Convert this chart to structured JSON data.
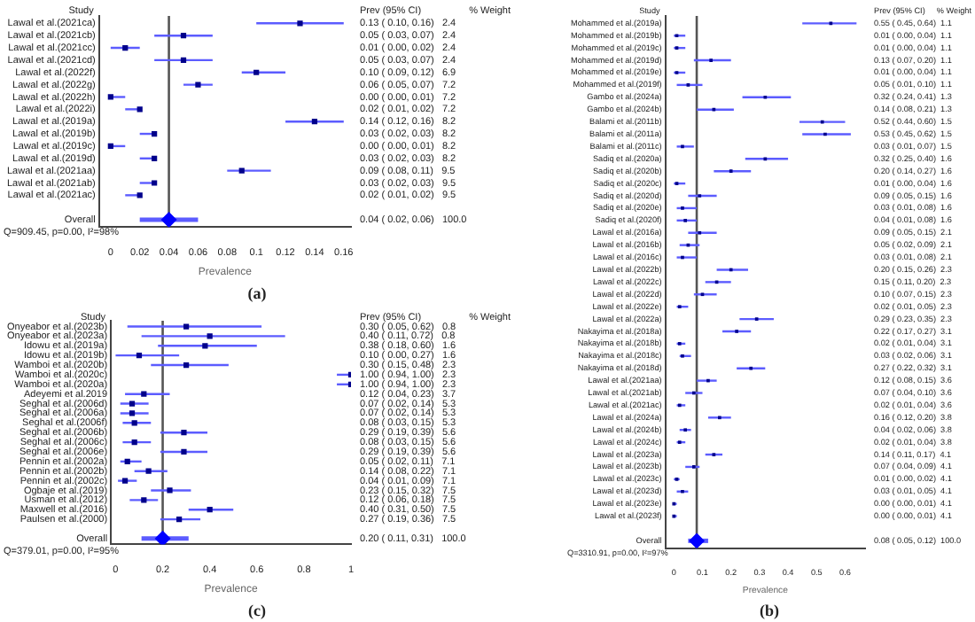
{
  "chart_data": [
    {
      "type": "scatter",
      "orientation": "horizontal",
      "xlabel": "Prevalence",
      "xlim": [
        -0.008,
        0.165
      ],
      "xticks": [
        0,
        0.02,
        0.04,
        0.06,
        0.08,
        0.1,
        0.12,
        0.14,
        0.16
      ],
      "grid": false,
      "legend": false,
      "categories": [
        "Lawal et al.(2021ca)",
        "Lawal et al.(2021cb)",
        "Lawal et al.(2021cc)",
        "Lawal et al.(2021cd)",
        "Lawal et al.(2022f)",
        "Lawal et al.(2022g)",
        "Lawal et al.(2022h)",
        "Lawal et al.(2022i)",
        "Lawal et al.(2019a)",
        "Lawal et al.(2019b)",
        "Lawal et al.(2019c)",
        "Lawal et al.(2019d)",
        "Lawal et al.(2021aa)",
        "Lawal et al.(2021ab)",
        "Lawal et al.(2021ac)",
        null,
        "Overall"
      ],
      "series": [
        {
          "color": "#00008b",
          "marker": "square",
          "values": [
            0.13,
            0.05,
            0.01,
            0.05,
            0.1,
            0.06,
            0.0,
            0.02,
            0.14,
            0.03,
            0.0,
            0.03,
            0.09,
            0.03,
            0.02,
            null,
            null
          ],
          "errors": [
            [
              0.1,
              0.16
            ],
            [
              0.03,
              0.07
            ],
            [
              0.0,
              0.02
            ],
            [
              0.03,
              0.07
            ],
            [
              0.09,
              0.12
            ],
            [
              0.05,
              0.07
            ],
            [
              0.0,
              0.01
            ],
            [
              0.01,
              0.02
            ],
            [
              0.12,
              0.16
            ],
            [
              0.02,
              0.03
            ],
            [
              0.0,
              0.01
            ],
            [
              0.02,
              0.03
            ],
            [
              0.08,
              0.11
            ],
            [
              0.02,
              0.03
            ],
            [
              0.01,
              0.02
            ],
            null,
            null
          ],
          "value_labels": [
            "0.13 ( 0.10, 0.16)   2.4",
            "0.05 ( 0.03, 0.07)   2.4",
            "0.01 ( 0.00, 0.02)   2.4",
            "0.05 ( 0.03, 0.07)   2.4",
            "0.10 ( 0.09, 0.12)   6.9",
            "0.06 ( 0.05, 0.07)   7.2",
            "0.00 ( 0.00, 0.01)   7.2",
            "0.02 ( 0.01, 0.02)   7.2",
            "0.14 ( 0.12, 0.16)   8.2",
            "0.03 ( 0.02, 0.03)   8.2",
            "0.00 ( 0.00, 0.01)   8.2",
            "0.03 ( 0.02, 0.03)   8.2",
            "0.09 ( 0.08, 0.11)   9.5",
            "0.03 ( 0.02, 0.03)   9.5",
            "0.02 ( 0.01, 0.02)   9.5",
            null,
            null
          ]
        },
        {
          "color": "#0000ff",
          "marker": "diamond",
          "values": [
            null,
            null,
            null,
            null,
            null,
            null,
            null,
            null,
            null,
            null,
            null,
            null,
            null,
            null,
            null,
            null,
            0.04
          ],
          "errors": [
            null,
            null,
            null,
            null,
            null,
            null,
            null,
            null,
            null,
            null,
            null,
            null,
            null,
            null,
            null,
            null,
            [
              0.02,
              0.06
            ]
          ],
          "value_labels": [
            null,
            null,
            null,
            null,
            null,
            null,
            null,
            null,
            null,
            null,
            null,
            null,
            null,
            null,
            null,
            null,
            null
          ]
        }
      ],
      "ref_lines": [
        {
          "axis": "x",
          "value": 0.04,
          "color": "#555555"
        }
      ],
      "annotations": [
        "Study",
        "Prev (95% CI)",
        "% Weight",
        "Q=909.45, p=0.00, I²=98%",
        "(a)",
        "0.04 ( 0.02, 0.06)   100.0"
      ]
    },
    {
      "type": "scatter",
      "orientation": "horizontal",
      "xlabel": "Prevalence",
      "xlim": [
        -0.03,
        0.67
      ],
      "xticks": [
        0,
        0.1,
        0.2,
        0.3,
        0.4,
        0.5,
        0.6
      ],
      "grid": false,
      "legend": false,
      "categories": [
        "Mohammed et al.(2019a)",
        "Mohammed et al.(2019b)",
        "Mohammed et al.(2019c)",
        "Mohammed et al.(2019d)",
        "Mohammed et al.(2019e)",
        "Mohammed et al.(2019f)",
        "Gambo et al.(2024a)",
        "Gambo et al.(2024b)",
        "Balami et al.(2011b)",
        "Balami et al.(2011a)",
        "Balami et al.(2011c)",
        "Sadiq et al.(2020a)",
        "Sadiq et al.(2020b)",
        "Sadiq et al.(2020c)",
        "Sadiq et al.(2020d)",
        "Sadiq et al.(2020e)",
        "Sadiq et al.(2020f)",
        "Lawal et al.(2016a)",
        "Lawal et al.(2016b)",
        "Lawal et al.(2016c)",
        "Lawal et al.(2022b)",
        "Lawal et al.(2022c)",
        "Lawal et al.(2022d)",
        "Lawal et al.(2022e)",
        "Lawal et al.(2022a)",
        "Nakayima et al.(2018a)",
        "Nakayima et al.(2018b)",
        "Nakayima et al.(2018c)",
        "Nakayima et al.(2018d)",
        "Lawal et al.(2021aa)",
        "Lawal et al.(2021ab)",
        "Lawal et al.(2021ac)",
        "Lawal et al.(2024a)",
        "Lawal et al.(2024b)",
        "Lawal et al.(2024c)",
        "Lawal et al.(2023a)",
        "Lawal et al.(2023b)",
        "Lawal et al.(2023c)",
        "Lawal et al.(2023d)",
        "Lawal et al.(2023e)",
        "Lawal et al.(2023f)",
        null,
        "Overall"
      ],
      "series": [
        {
          "color": "#00008b",
          "marker": "square",
          "values": [
            0.55,
            0.01,
            0.01,
            0.13,
            0.01,
            0.05,
            0.32,
            0.14,
            0.52,
            0.53,
            0.03,
            0.32,
            0.2,
            0.01,
            0.09,
            0.03,
            0.04,
            0.09,
            0.05,
            0.03,
            0.2,
            0.15,
            0.1,
            0.02,
            0.29,
            0.22,
            0.02,
            0.03,
            0.27,
            0.12,
            0.07,
            0.02,
            0.16,
            0.04,
            0.02,
            0.14,
            0.07,
            0.01,
            0.03,
            0.0,
            0.0,
            null,
            null
          ],
          "errors": [
            [
              0.45,
              0.64
            ],
            [
              0.0,
              0.04
            ],
            [
              0.0,
              0.04
            ],
            [
              0.07,
              0.2
            ],
            [
              0.0,
              0.04
            ],
            [
              0.01,
              0.1
            ],
            [
              0.24,
              0.41
            ],
            [
              0.08,
              0.21
            ],
            [
              0.44,
              0.6
            ],
            [
              0.45,
              0.62
            ],
            [
              0.01,
              0.07
            ],
            [
              0.25,
              0.4
            ],
            [
              0.14,
              0.27
            ],
            [
              0.0,
              0.04
            ],
            [
              0.05,
              0.15
            ],
            [
              0.01,
              0.08
            ],
            [
              0.01,
              0.08
            ],
            [
              0.05,
              0.15
            ],
            [
              0.02,
              0.09
            ],
            [
              0.01,
              0.08
            ],
            [
              0.15,
              0.26
            ],
            [
              0.11,
              0.2
            ],
            [
              0.07,
              0.15
            ],
            [
              0.01,
              0.05
            ],
            [
              0.23,
              0.35
            ],
            [
              0.17,
              0.27
            ],
            [
              0.01,
              0.04
            ],
            [
              0.02,
              0.06
            ],
            [
              0.22,
              0.32
            ],
            [
              0.08,
              0.15
            ],
            [
              0.04,
              0.1
            ],
            [
              0.01,
              0.04
            ],
            [
              0.12,
              0.2
            ],
            [
              0.02,
              0.06
            ],
            [
              0.01,
              0.04
            ],
            [
              0.11,
              0.17
            ],
            [
              0.04,
              0.09
            ],
            [
              0.0,
              0.02
            ],
            [
              0.01,
              0.05
            ],
            [
              0.0,
              0.01
            ],
            [
              0.0,
              0.01
            ],
            null,
            null
          ],
          "value_labels": [
            "0.55 ( 0.45, 0.64)  1.1",
            "0.01 ( 0.00, 0.04)  1.1",
            "0.01 ( 0.00, 0.04)  1.1",
            "0.13 ( 0.07, 0.20)  1.1",
            "0.01 ( 0.00, 0.04)  1.1",
            "0.05 ( 0.01, 0.10)  1.1",
            "0.32 ( 0.24, 0.41)  1.3",
            "0.14 ( 0.08, 0.21)  1.3",
            "0.52 ( 0.44, 0.60)  1.5",
            "0.53 ( 0.45, 0.62)  1.5",
            "0.03 ( 0.01, 0.07)  1.5",
            "0.32 ( 0.25, 0.40)  1.6",
            "0.20 ( 0.14, 0.27)  1.6",
            "0.01 ( 0.00, 0.04)  1.6",
            "0.09 ( 0.05, 0.15)  1.6",
            "0.03 ( 0.01, 0.08)  1.6",
            "0.04 ( 0.01, 0.08)  1.6",
            "0.09 ( 0.05, 0.15)  2.1",
            "0.05 ( 0.02, 0.09)  2.1",
            "0.03 ( 0.01, 0.08)  2.1",
            "0.20 ( 0.15, 0.26)  2.3",
            "0.15 ( 0.11, 0.20)  2.3",
            "0.10 ( 0.07, 0.15)  2.3",
            "0.02 ( 0.01, 0.05)  2.3",
            "0.29 ( 0.23, 0.35)  2.3",
            "0.22 ( 0.17, 0.27)  3.1",
            "0.02 ( 0.01, 0.04)  3.1",
            "0.03 ( 0.02, 0.06)  3.1",
            "0.27 ( 0.22, 0.32)  3.1",
            "0.12 ( 0.08, 0.15)  3.6",
            "0.07 ( 0.04, 0.10)  3.6",
            "0.02 ( 0.01, 0.04)  3.6",
            "0.16 ( 0.12, 0.20)  3.8",
            "0.04 ( 0.02, 0.06)  3.8",
            "0.02 ( 0.01, 0.04)  3.8",
            "0.14 ( 0.11, 0.17)  4.1",
            "0.07 ( 0.04, 0.09)  4.1",
            "0.01 ( 0.00, 0.02)  4.1",
            "0.03 ( 0.01, 0.05)  4.1",
            "0.00 ( 0.00, 0.01)  4.1",
            "0.00 ( 0.00, 0.01)  4.1",
            null,
            null
          ]
        },
        {
          "color": "#0000ff",
          "marker": "diamond",
          "values": [
            null,
            null,
            null,
            null,
            null,
            null,
            null,
            null,
            null,
            null,
            null,
            null,
            null,
            null,
            null,
            null,
            null,
            null,
            null,
            null,
            null,
            null,
            null,
            null,
            null,
            null,
            null,
            null,
            null,
            null,
            null,
            null,
            null,
            null,
            null,
            null,
            null,
            null,
            null,
            null,
            null,
            null,
            0.08
          ],
          "errors": [
            null,
            null,
            null,
            null,
            null,
            null,
            null,
            null,
            null,
            null,
            null,
            null,
            null,
            null,
            null,
            null,
            null,
            null,
            null,
            null,
            null,
            null,
            null,
            null,
            null,
            null,
            null,
            null,
            null,
            null,
            null,
            null,
            null,
            null,
            null,
            null,
            null,
            null,
            null,
            null,
            null,
            null,
            [
              0.05,
              0.12
            ]
          ],
          "value_labels": [
            null,
            null,
            null,
            null,
            null,
            null,
            null,
            null,
            null,
            null,
            null,
            null,
            null,
            null,
            null,
            null,
            null,
            null,
            null,
            null,
            null,
            null,
            null,
            null,
            null,
            null,
            null,
            null,
            null,
            null,
            null,
            null,
            null,
            null,
            null,
            null,
            null,
            null,
            null,
            null,
            null,
            null,
            null
          ]
        }
      ],
      "ref_lines": [
        {
          "axis": "x",
          "value": 0.08,
          "color": "#555555"
        }
      ],
      "annotations": [
        "Study",
        "Prev (95% CI)",
        "% Weight",
        "Q=3310.91, p=0.00, I²=97%",
        "(b)",
        "0.08 ( 0.05, 0.12)  100.0"
      ]
    },
    {
      "type": "scatter",
      "orientation": "horizontal",
      "xlabel": "Prevalence",
      "xlim": [
        -0.02,
        1.0
      ],
      "xticks": [
        0,
        0.2,
        0.4,
        0.6,
        0.8,
        1
      ],
      "grid": false,
      "legend": false,
      "categories": [
        "Onyeabor et al.(2023b)",
        "Onyeabor et al.(2023a)",
        "Idowu et al.(2019a)",
        "Idowu et al.(2019b)",
        "Wamboi et al.(2020b)",
        "Wamboi et al.(2020c)",
        "Wamboi et al.(2020a)",
        "Adeyemi et al.2019",
        "Seghal et al.(2006d)",
        "Seghal et al.(2006a)",
        "Seghal et al.(2006f)",
        "Seghal et al.(2006b)",
        "Seghal et al.(2006c)",
        "Seghal et al.(2006e)",
        "Pennin et al.(2002a)",
        "Pennin et al.(2002b)",
        "Pennin et al.(2002c)",
        "Ogbaje et al.(2019)",
        "Usman et al.(2012)",
        "Maxwell et al.(2016)",
        "Paulsen et al.(2000)",
        null,
        "Overall"
      ],
      "series": [
        {
          "color": "#00008b",
          "marker": "square",
          "values": [
            0.3,
            0.4,
            0.38,
            0.1,
            0.3,
            1.0,
            1.0,
            0.12,
            0.07,
            0.07,
            0.08,
            0.29,
            0.08,
            0.29,
            0.05,
            0.14,
            0.04,
            0.23,
            0.12,
            0.4,
            0.27,
            null,
            null
          ],
          "errors": [
            [
              0.05,
              0.62
            ],
            [
              0.11,
              0.72
            ],
            [
              0.18,
              0.6
            ],
            [
              0.0,
              0.27
            ],
            [
              0.15,
              0.48
            ],
            [
              0.94,
              1.0
            ],
            [
              0.94,
              1.0
            ],
            [
              0.04,
              0.23
            ],
            [
              0.02,
              0.14
            ],
            [
              0.02,
              0.14
            ],
            [
              0.03,
              0.15
            ],
            [
              0.19,
              0.39
            ],
            [
              0.03,
              0.15
            ],
            [
              0.19,
              0.39
            ],
            [
              0.02,
              0.11
            ],
            [
              0.08,
              0.22
            ],
            [
              0.01,
              0.09
            ],
            [
              0.15,
              0.32
            ],
            [
              0.06,
              0.18
            ],
            [
              0.31,
              0.5
            ],
            [
              0.19,
              0.36
            ],
            null,
            null
          ],
          "value_labels": [
            "0.30 ( 0.05, 0.62)   0.8",
            "0.40 ( 0.11, 0.72)   0.8",
            "0.38 ( 0.18, 0.60)   1.6",
            "0.10 ( 0.00, 0.27)   1.6",
            "0.30 ( 0.15, 0.48)   2.3",
            "1.00 ( 0.94, 1.00)   2.3",
            "1.00 ( 0.94, 1.00)   2.3",
            "0.12 ( 0.04, 0.23)   3.7",
            "0.07 ( 0.02, 0.14)   5.3",
            "0.07 ( 0.02, 0.14)   5.3",
            "0.08 ( 0.03, 0.15)   5.3",
            "0.29 ( 0.19, 0.39)   5.6",
            "0.08 ( 0.03, 0.15)   5.6",
            "0.29 ( 0.19, 0.39)   5.6",
            "0.05 ( 0.02, 0.11)   7.1",
            "0.14 ( 0.08, 0.22)   7.1",
            "0.04 ( 0.01, 0.09)   7.1",
            "0.23 ( 0.15, 0.32)   7.5",
            "0.12 ( 0.06, 0.18)   7.5",
            "0.40 ( 0.31, 0.50)   7.5",
            "0.27 ( 0.19, 0.36)   7.5",
            null,
            null
          ]
        },
        {
          "color": "#0000ff",
          "marker": "diamond",
          "values": [
            null,
            null,
            null,
            null,
            null,
            null,
            null,
            null,
            null,
            null,
            null,
            null,
            null,
            null,
            null,
            null,
            null,
            null,
            null,
            null,
            null,
            null,
            0.2
          ],
          "errors": [
            null,
            null,
            null,
            null,
            null,
            null,
            null,
            null,
            null,
            null,
            null,
            null,
            null,
            null,
            null,
            null,
            null,
            null,
            null,
            null,
            null,
            null,
            [
              0.11,
              0.31
            ]
          ],
          "value_labels": [
            null,
            null,
            null,
            null,
            null,
            null,
            null,
            null,
            null,
            null,
            null,
            null,
            null,
            null,
            null,
            null,
            null,
            null,
            null,
            null,
            null,
            null,
            null
          ]
        }
      ],
      "ref_lines": [
        {
          "axis": "x",
          "value": 0.2,
          "color": "#555555"
        }
      ],
      "annotations": [
        "Study",
        "Prev (95% CI)",
        "% Weight",
        "Q=379.01, p=0.00, I²=95%",
        "(c)",
        "0.20 ( 0.11, 0.31)   100.0"
      ]
    }
  ]
}
